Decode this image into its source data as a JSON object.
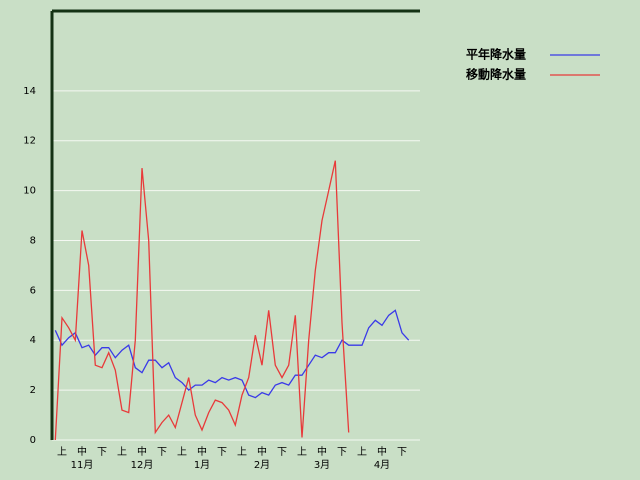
{
  "chart_data": {
    "type": "line",
    "categories": [
      null,
      "上",
      null,
      null,
      "中",
      null,
      null,
      "下",
      null,
      null,
      "上",
      null,
      null,
      "中",
      null,
      null,
      "下",
      null,
      null,
      "上",
      null,
      null,
      "中",
      null,
      null,
      "下",
      null,
      null,
      "上",
      null,
      null,
      "中",
      null,
      null,
      "下",
      null,
      null,
      "上",
      null,
      null,
      "中",
      null,
      null,
      "下",
      null,
      null,
      "上",
      null,
      null,
      "中",
      null,
      null,
      "下",
      null
    ],
    "month_labels": [
      "11月",
      "12月",
      "1月",
      "2月",
      "3月",
      "4月"
    ],
    "series": [
      {
        "name": "平年降水量",
        "color": "#3a3ae8",
        "values": [
          4.4,
          3.8,
          4.1,
          4.3,
          3.7,
          3.8,
          3.4,
          3.7,
          3.7,
          3.3,
          3.6,
          3.8,
          2.9,
          2.7,
          3.2,
          3.2,
          2.9,
          3.1,
          2.5,
          2.3,
          2.0,
          2.2,
          2.2,
          2.4,
          2.3,
          2.5,
          2.4,
          2.5,
          2.4,
          1.8,
          1.7,
          1.9,
          1.8,
          2.2,
          2.3,
          2.2,
          2.6,
          2.6,
          3.0,
          3.4,
          3.3,
          3.5,
          3.5,
          4.0,
          3.8,
          3.8,
          3.8,
          4.5,
          4.8,
          4.6,
          5.0,
          5.2,
          4.3,
          4.0
        ]
      },
      {
        "name": "移動降水量",
        "color": "#e83a3a",
        "values": [
          0,
          4.9,
          4.5,
          4.0,
          8.4,
          7.0,
          3.0,
          2.9,
          3.5,
          2.8,
          1.2,
          1.1,
          4.0,
          10.9,
          8.0,
          0.3,
          0.7,
          1.0,
          0.5,
          1.5,
          2.5,
          1.0,
          0.4,
          1.1,
          1.6,
          1.5,
          1.2,
          0.6,
          1.8,
          2.5,
          4.2,
          3.0,
          5.2,
          3.0,
          2.5,
          3.0,
          5.0,
          0.1,
          4.0,
          6.8,
          8.8,
          10.0,
          11.2,
          4.7,
          0.3,
          null,
          null,
          null,
          null,
          null,
          null,
          null,
          null,
          null
        ]
      }
    ],
    "ylim": [
      0,
      17.2
    ],
    "yticks": [
      0,
      2,
      4,
      6,
      8,
      10,
      12,
      14
    ],
    "grid": true
  }
}
